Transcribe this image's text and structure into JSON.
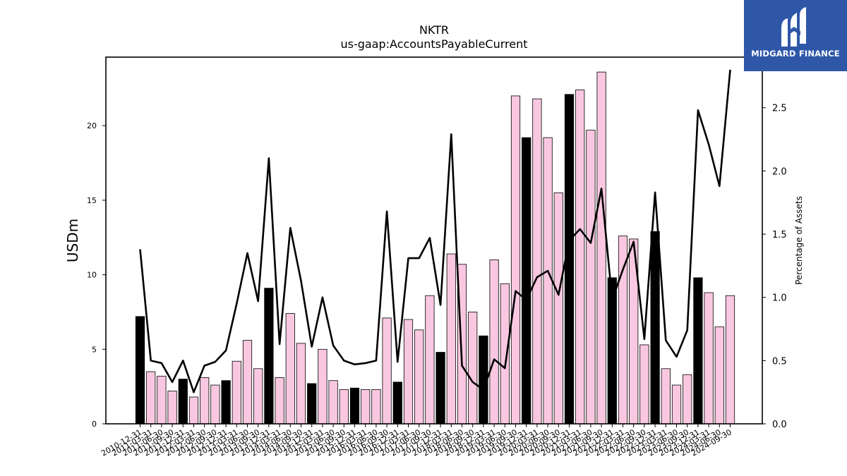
{
  "brand": {
    "name": "MIDGARD FINANCE",
    "bg_color": "#2e57a8",
    "icon": "midgard-m-logo-icon"
  },
  "chart_data": {
    "type": "bar",
    "title": "NKTR",
    "subtitle": "us-gaap:AccountsPayableCurrent",
    "ylabel": "USDm",
    "y2label": "Percentage of Assets",
    "ylim": [
      0,
      24.6
    ],
    "y2lim": [
      0,
      2.9
    ],
    "yticks": [
      0,
      5,
      10,
      15,
      20
    ],
    "y2ticks": [
      0.0,
      0.5,
      1.0,
      1.5,
      2.0,
      2.5
    ],
    "bar_colors": {
      "q4": "#000000",
      "other": "#f9c8e0"
    },
    "line_color": "#000000",
    "grid": false,
    "categories": [
      "2010-12-31",
      "2011-03-31",
      "2011-06-30",
      "2011-09-30",
      "2011-12-31",
      "2012-03-31",
      "2012-06-30",
      "2012-09-30",
      "2012-12-31",
      "2013-03-31",
      "2013-06-30",
      "2013-09-30",
      "2013-12-31",
      "2014-03-31",
      "2014-06-30",
      "2014-09-30",
      "2014-12-31",
      "2015-03-31",
      "2015-06-30",
      "2015-09-30",
      "2015-12-31",
      "2016-03-31",
      "2016-06-30",
      "2016-09-30",
      "2016-12-31",
      "2017-03-31",
      "2017-06-30",
      "2017-09-30",
      "2017-12-31",
      "2018-03-31",
      "2018-06-30",
      "2018-09-30",
      "2018-12-31",
      "2019-03-31",
      "2019-06-30",
      "2019-09-30",
      "2019-12-31",
      "2020-03-31",
      "2020-06-30",
      "2020-09-30",
      "2020-12-31",
      "2021-03-31",
      "2021-06-30",
      "2021-09-30",
      "2021-12-31",
      "2022-03-31",
      "2022-06-30",
      "2022-09-30",
      "2022-12-31",
      "2023-03-31",
      "2023-06-30",
      "2023-09-30",
      "2023-12-31",
      "2024-03-31",
      "2024-06-30",
      "2024-09-30"
    ],
    "series": [
      {
        "kind": "bar",
        "axis": "left",
        "values": [
          7.2,
          3.5,
          3.2,
          2.2,
          3.0,
          1.8,
          3.1,
          2.6,
          2.9,
          4.2,
          5.6,
          3.7,
          9.1,
          3.1,
          7.4,
          5.4,
          2.7,
          5.0,
          2.9,
          2.3,
          2.4,
          2.3,
          2.3,
          7.1,
          2.8,
          7.0,
          6.3,
          8.6,
          4.8,
          11.4,
          10.7,
          7.5,
          5.9,
          11.0,
          9.4,
          22.0,
          19.2,
          21.8,
          19.2,
          15.5,
          22.1,
          22.4,
          19.7,
          23.6,
          9.8,
          12.6,
          12.4,
          5.3,
          12.9,
          3.7,
          2.6,
          3.3,
          9.8,
          8.8,
          6.5,
          8.6
        ]
      },
      {
        "kind": "line",
        "axis": "right",
        "values": [
          1.38,
          0.5,
          0.48,
          0.33,
          0.5,
          0.25,
          0.46,
          0.49,
          0.58,
          0.95,
          1.35,
          0.97,
          2.1,
          0.63,
          1.55,
          1.13,
          0.61,
          1.0,
          0.62,
          0.5,
          0.47,
          0.48,
          0.5,
          1.68,
          0.49,
          1.31,
          1.31,
          1.47,
          0.94,
          2.29,
          0.46,
          0.33,
          0.27,
          0.51,
          0.44,
          1.05,
          0.98,
          1.16,
          1.21,
          1.02,
          1.45,
          1.54,
          1.43,
          1.86,
          0.98,
          1.22,
          1.44,
          0.67,
          1.83,
          0.66,
          0.53,
          0.74,
          2.48,
          2.21,
          1.88,
          2.8
        ]
      }
    ]
  }
}
